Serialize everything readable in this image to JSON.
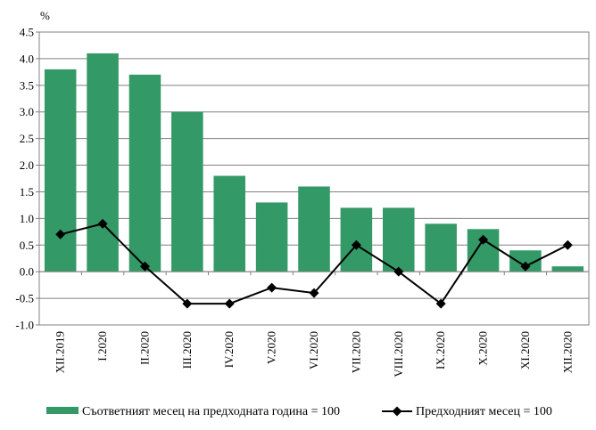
{
  "chart_data": {
    "type": "bar",
    "title": "",
    "unit_label": "%",
    "ylim": [
      -1.0,
      4.5
    ],
    "ytick_step": 0.5,
    "yticks": [
      "4.5",
      "4.0",
      "3.5",
      "3.0",
      "2.5",
      "2.0",
      "1.5",
      "1.0",
      "0.5",
      "0.0",
      "-0.5",
      "-1.0"
    ],
    "grid": true,
    "legend_position": "bottom",
    "categories": [
      "XII.2019",
      "I.2020",
      "II.2020",
      "III.2020",
      "IV.2020",
      "V.2020",
      "VI.2020",
      "VII.2020",
      "VIII.2020",
      "IX.2020",
      "X.2020",
      "XI.2020",
      "XII.2020"
    ],
    "series": [
      {
        "name": "Съответният месец на предходната година = 100",
        "type": "bar",
        "color": "#339966",
        "values": [
          3.8,
          4.1,
          3.7,
          3.0,
          1.8,
          1.3,
          1.6,
          1.2,
          1.2,
          0.9,
          0.8,
          0.4,
          0.1
        ]
      },
      {
        "name": "Предходният месец = 100",
        "type": "line",
        "color": "#000000",
        "marker": "diamond",
        "values": [
          0.7,
          0.9,
          0.1,
          -0.6,
          -0.6,
          -0.3,
          -0.4,
          0.5,
          0.0,
          -0.6,
          0.6,
          0.1,
          0.5
        ]
      }
    ]
  }
}
